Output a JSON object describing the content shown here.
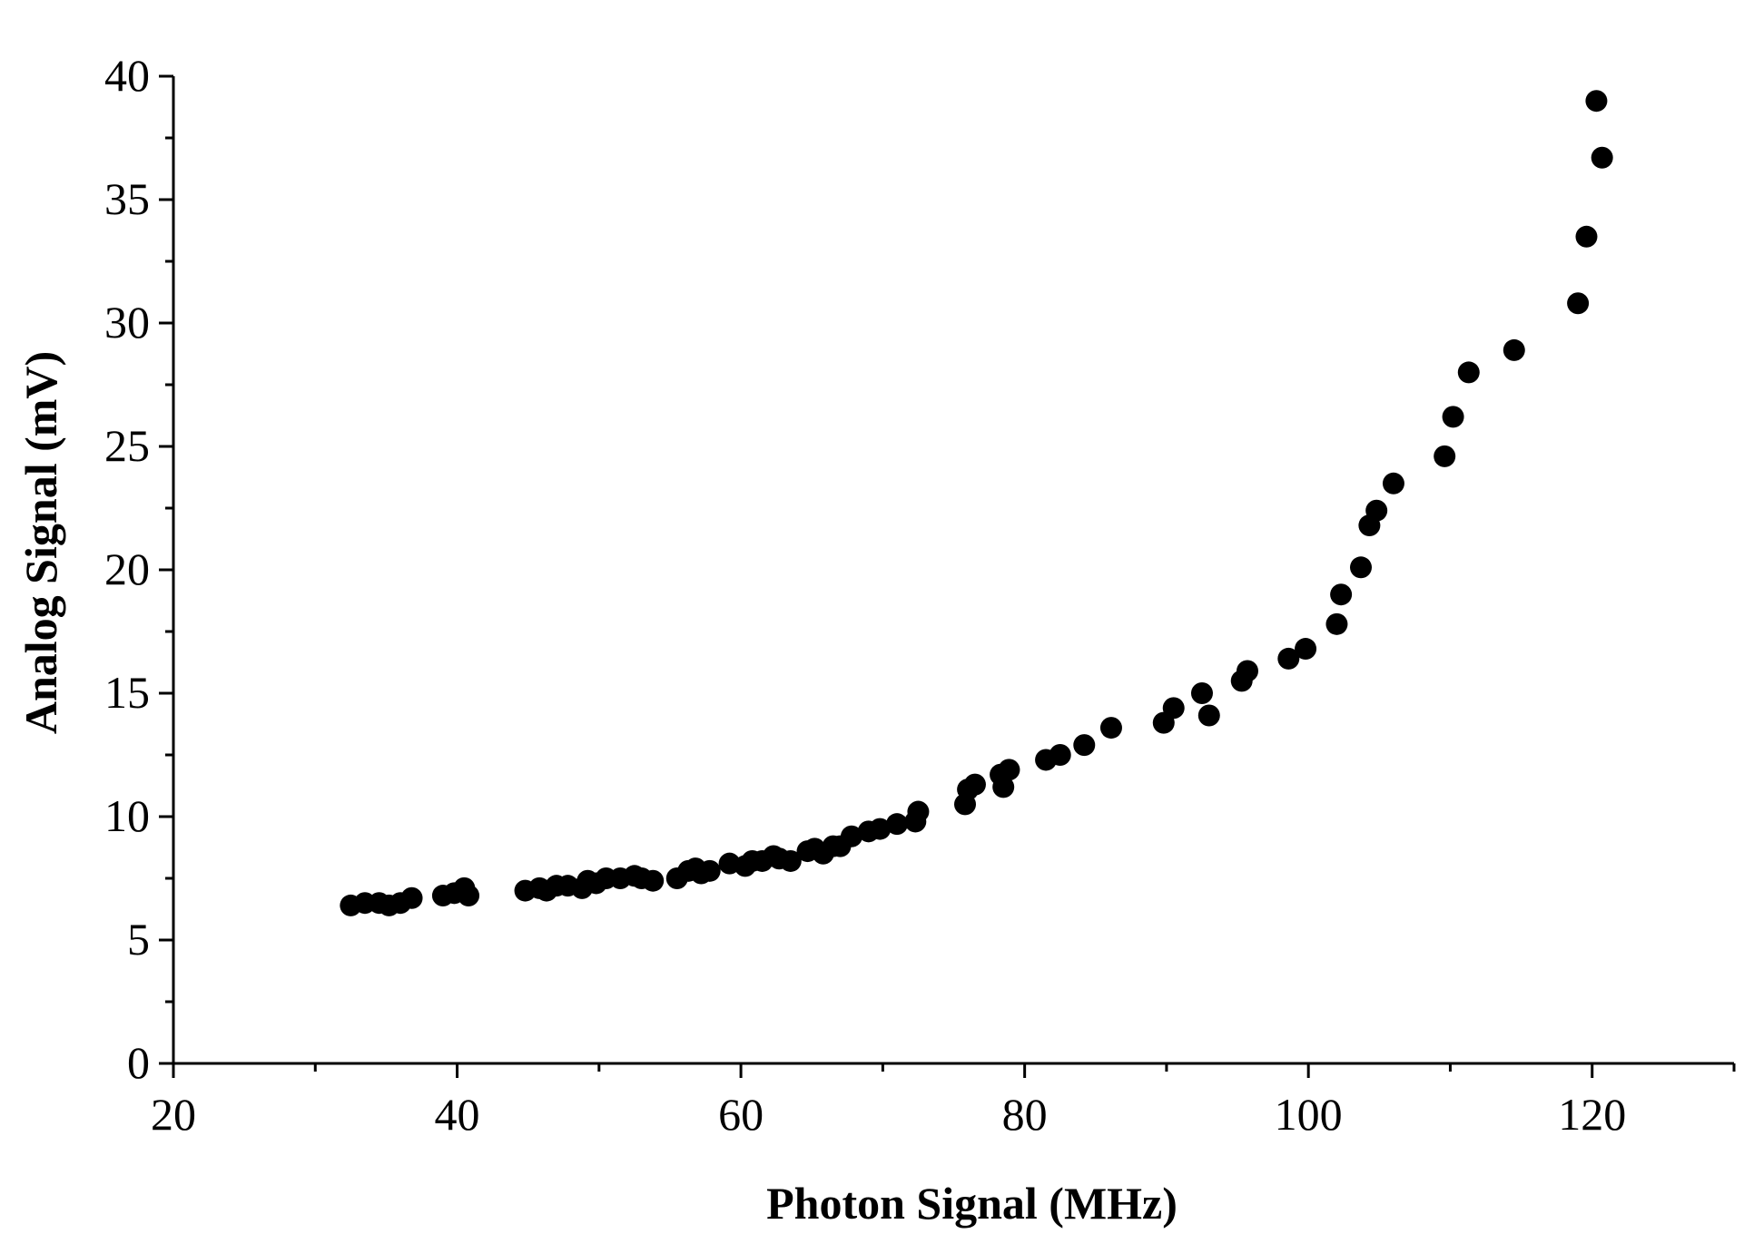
{
  "chart_data": {
    "type": "scatter",
    "xlabel": "Photon Signal (MHz)",
    "ylabel": "Analog Signal (mV)",
    "xlim": [
      20,
      130
    ],
    "ylim": [
      0,
      40
    ],
    "x_ticks": [
      20,
      40,
      60,
      80,
      100,
      120
    ],
    "y_ticks": [
      0,
      5,
      10,
      15,
      20,
      25,
      30,
      35,
      40
    ],
    "grid": false,
    "legend": "none",
    "marker_color": "#000000",
    "points": [
      [
        32.5,
        6.4
      ],
      [
        33.5,
        6.5
      ],
      [
        34.5,
        6.5
      ],
      [
        35.2,
        6.4
      ],
      [
        36.0,
        6.5
      ],
      [
        36.8,
        6.7
      ],
      [
        39.0,
        6.8
      ],
      [
        39.8,
        6.9
      ],
      [
        40.5,
        7.1
      ],
      [
        40.8,
        6.8
      ],
      [
        44.8,
        7.0
      ],
      [
        45.8,
        7.1
      ],
      [
        46.3,
        7.0
      ],
      [
        47.0,
        7.2
      ],
      [
        47.8,
        7.2
      ],
      [
        48.8,
        7.1
      ],
      [
        49.2,
        7.4
      ],
      [
        49.8,
        7.3
      ],
      [
        50.5,
        7.5
      ],
      [
        51.5,
        7.5
      ],
      [
        52.5,
        7.6
      ],
      [
        53.0,
        7.5
      ],
      [
        53.8,
        7.4
      ],
      [
        55.5,
        7.5
      ],
      [
        56.3,
        7.8
      ],
      [
        56.8,
        7.9
      ],
      [
        57.2,
        7.7
      ],
      [
        57.8,
        7.8
      ],
      [
        59.2,
        8.1
      ],
      [
        60.3,
        8.0
      ],
      [
        60.8,
        8.2
      ],
      [
        61.5,
        8.2
      ],
      [
        62.3,
        8.4
      ],
      [
        62.7,
        8.3
      ],
      [
        63.5,
        8.2
      ],
      [
        64.7,
        8.6
      ],
      [
        65.2,
        8.7
      ],
      [
        65.8,
        8.5
      ],
      [
        66.5,
        8.8
      ],
      [
        67.0,
        8.8
      ],
      [
        67.8,
        9.2
      ],
      [
        69.0,
        9.4
      ],
      [
        69.8,
        9.5
      ],
      [
        71.0,
        9.7
      ],
      [
        72.3,
        9.8
      ],
      [
        72.5,
        10.2
      ],
      [
        75.8,
        10.5
      ],
      [
        76.0,
        11.1
      ],
      [
        76.5,
        11.3
      ],
      [
        78.3,
        11.7
      ],
      [
        78.5,
        11.2
      ],
      [
        78.9,
        11.9
      ],
      [
        81.5,
        12.3
      ],
      [
        82.5,
        12.5
      ],
      [
        84.2,
        12.9
      ],
      [
        86.1,
        13.6
      ],
      [
        89.8,
        13.8
      ],
      [
        90.5,
        14.4
      ],
      [
        92.5,
        15.0
      ],
      [
        93.0,
        14.1
      ],
      [
        95.3,
        15.5
      ],
      [
        95.7,
        15.9
      ],
      [
        98.6,
        16.4
      ],
      [
        99.8,
        16.8
      ],
      [
        102.0,
        17.8
      ],
      [
        102.3,
        19.0
      ],
      [
        103.7,
        20.1
      ],
      [
        104.3,
        21.8
      ],
      [
        104.8,
        22.4
      ],
      [
        106.0,
        23.5
      ],
      [
        109.6,
        24.6
      ],
      [
        110.2,
        26.2
      ],
      [
        111.3,
        28.0
      ],
      [
        114.5,
        28.9
      ],
      [
        119.0,
        30.8
      ],
      [
        119.6,
        33.5
      ],
      [
        120.3,
        39.0
      ],
      [
        120.7,
        36.7
      ]
    ]
  }
}
